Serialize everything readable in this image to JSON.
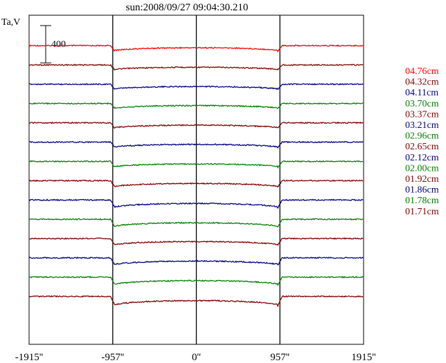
{
  "chart_data": {
    "type": "line",
    "title": "sun:2008/09/27 09:04:30.210",
    "ylabel": "Ta,V",
    "scale_bar_label": "400",
    "scale_bar_value": 400,
    "xlim": [
      -1915,
      1915
    ],
    "x_ticks": [
      {
        "value": -1915,
        "label": "-1915''"
      },
      {
        "value": -957,
        "label": "-957''"
      },
      {
        "value": 0,
        "label": "0''"
      },
      {
        "value": 957,
        "label": "957''"
      },
      {
        "value": 1915,
        "label": "1915''"
      }
    ],
    "vertical_lines": [
      -957,
      0,
      957
    ],
    "series": [
      {
        "name": "04.76cm",
        "color": "#ff0000",
        "baseline_level": 14,
        "disk_depth": 120,
        "center_rise": 75
      },
      {
        "name": "04.32cm",
        "color": "#800000",
        "baseline_level": 13,
        "disk_depth": 110,
        "center_rise": 60
      },
      {
        "name": "04.11cm",
        "color": "#000080",
        "baseline_level": 12,
        "disk_depth": 115,
        "center_rise": 65
      },
      {
        "name": "03.70cm",
        "color": "#008000",
        "baseline_level": 11,
        "disk_depth": 110,
        "center_rise": 65
      },
      {
        "name": "03.37cm",
        "color": "#800000",
        "baseline_level": 10,
        "disk_depth": 120,
        "center_rise": 70
      },
      {
        "name": "03.21cm",
        "color": "#000080",
        "baseline_level": 9,
        "disk_depth": 120,
        "center_rise": 70
      },
      {
        "name": "02.96cm",
        "color": "#008000",
        "baseline_level": 8,
        "disk_depth": 130,
        "center_rise": 75
      },
      {
        "name": "02.65cm",
        "color": "#800000",
        "baseline_level": 7,
        "disk_depth": 140,
        "center_rise": 80
      },
      {
        "name": "02.12cm",
        "color": "#000080",
        "baseline_level": 6,
        "disk_depth": 170,
        "center_rise": 95
      },
      {
        "name": "02.00cm",
        "color": "#008000",
        "baseline_level": 5,
        "disk_depth": 170,
        "center_rise": 95
      },
      {
        "name": "01.92cm",
        "color": "#800000",
        "baseline_level": 4,
        "disk_depth": 150,
        "center_rise": 85
      },
      {
        "name": "01.86cm",
        "color": "#000080",
        "baseline_level": 3,
        "disk_depth": 160,
        "center_rise": 90
      },
      {
        "name": "01.78cm",
        "color": "#008000",
        "baseline_level": 2,
        "disk_depth": 170,
        "center_rise": 95
      },
      {
        "name": "01.71cm",
        "color": "#800000",
        "baseline_level": 1,
        "disk_depth": 200,
        "center_rise": 110
      }
    ]
  }
}
